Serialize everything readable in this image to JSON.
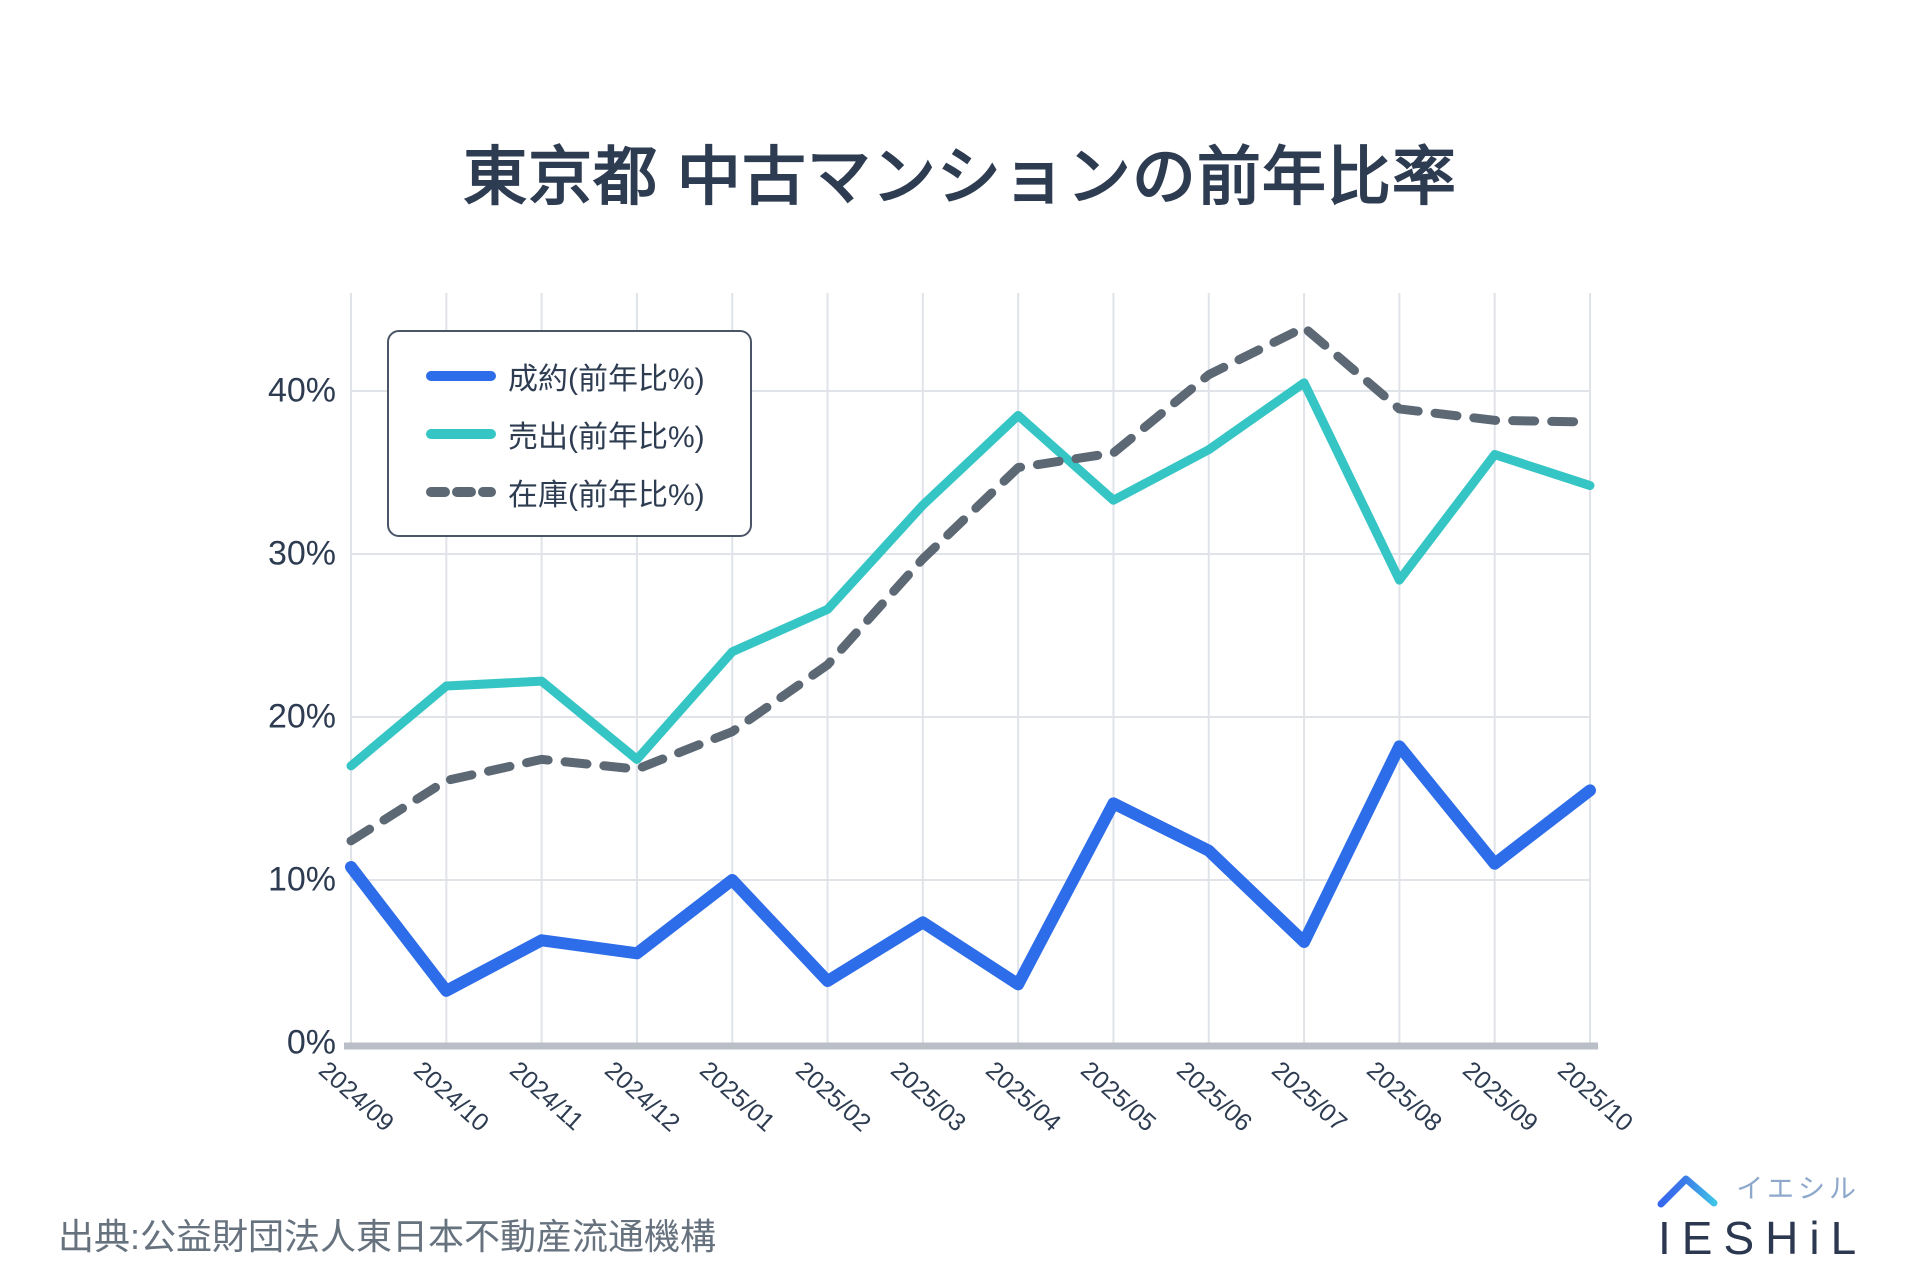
{
  "title": "東京都 中古マンションの前年比率",
  "source": "出典:公益財団法人東日本不動産流通機構",
  "logo": {
    "brand": "IESHiL",
    "kana": "イエシル"
  },
  "colors": {
    "contracts_blue": "#2e6de9",
    "listings_teal": "#35c5c4",
    "inventory_gray": "#5d6875",
    "title_text": "#2e3c52",
    "tick_text": "#2e3c52",
    "gridline": "#e0e3e8",
    "axis_line": "#b9bec7",
    "source_text": "#67727f",
    "logo_navy": "#2b3850",
    "logo_kana": "#8ea8cc",
    "roof_blue": "#3568ee",
    "roof_cyan": "#3fc3e6"
  },
  "chart_data": {
    "type": "line",
    "title": "東京都 中古マンションの前年比率",
    "categories": [
      "2024/09",
      "2024/10",
      "2024/11",
      "2024/12",
      "2025/01",
      "2025/02",
      "2025/03",
      "2025/04",
      "2025/05",
      "2025/06",
      "2025/07",
      "2025/08",
      "2025/09",
      "2025/10"
    ],
    "series": [
      {
        "id": "contracts",
        "name": "成約(前年比%)",
        "color": "#2e6de9",
        "style": "solid",
        "stroke_width": 12,
        "values": [
          10.8,
          3.2,
          6.3,
          5.5,
          10.0,
          3.8,
          7.4,
          3.6,
          14.7,
          11.8,
          6.2,
          18.2,
          11.0,
          15.5
        ]
      },
      {
        "id": "listings",
        "name": "売出(前年比%)",
        "color": "#35c5c4",
        "style": "solid",
        "stroke_width": 9,
        "values": [
          17.0,
          21.9,
          22.2,
          17.4,
          24.0,
          26.6,
          33.0,
          38.5,
          33.3,
          36.4,
          40.5,
          28.4,
          36.1,
          34.2
        ]
      },
      {
        "id": "inventory",
        "name": "在庫(前年比%)",
        "color": "#5d6875",
        "style": "dashed",
        "stroke_width": 9,
        "values": [
          12.4,
          16.1,
          17.4,
          16.8,
          19.1,
          23.2,
          29.7,
          35.3,
          36.2,
          41.0,
          43.9,
          38.9,
          38.2,
          38.1
        ]
      }
    ],
    "xlabel": "",
    "ylabel": "",
    "y_ticks": [
      0,
      10,
      20,
      30,
      40
    ],
    "y_tick_labels": [
      "0%",
      "10%",
      "20%",
      "30%",
      "40%"
    ],
    "ylim": [
      0,
      46
    ],
    "grid": true,
    "legend_position": "top-left-inside"
  }
}
